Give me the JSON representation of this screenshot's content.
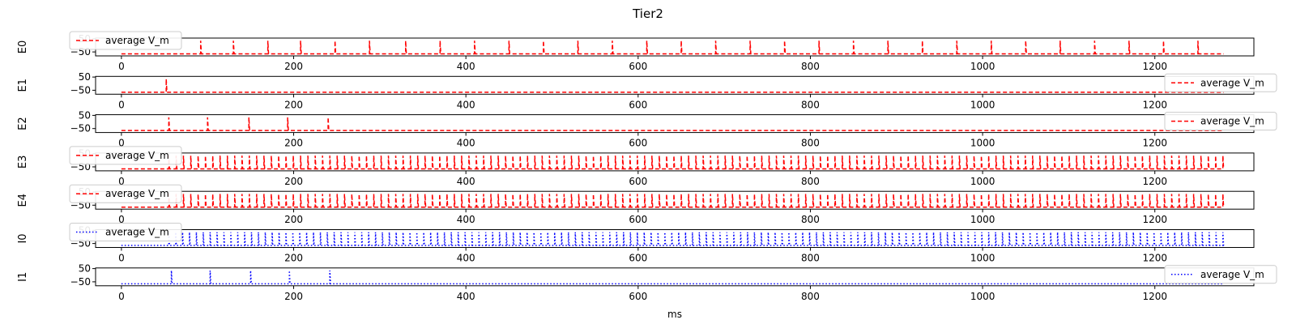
{
  "figure": {
    "title": "Tier2",
    "xlabel": "ms"
  },
  "legend_label": "average V_m",
  "chart_data": {
    "type": "line",
    "title": "Tier2",
    "xlabel": "ms",
    "xlim": [
      -30,
      1315
    ],
    "x_ticks": [
      0,
      200,
      400,
      600,
      800,
      1000,
      1200
    ],
    "x_tick_labels": [
      "0",
      "200",
      "400",
      "600",
      "800",
      "1000",
      "1200"
    ],
    "ylim": [
      -80,
      55
    ],
    "y_ticks": [
      50,
      -50
    ],
    "y_tick_labels": [
      "50",
      "−50"
    ],
    "panels": [
      {
        "ylabel": "E0",
        "color": "#ff0000",
        "linestyle": "dashed",
        "baseline": -65,
        "peak": 35,
        "legend": "upper-left",
        "spikes": [
          92,
          130,
          170,
          208,
          248,
          288,
          330,
          370,
          410,
          450,
          490,
          530,
          570,
          610,
          650,
          690,
          730,
          770,
          810,
          850,
          890,
          930,
          970,
          1010,
          1050,
          1090,
          1130,
          1170,
          1210,
          1250
        ]
      },
      {
        "ylabel": "E1",
        "color": "#ff0000",
        "linestyle": "dashed",
        "baseline": -65,
        "peak": 35,
        "legend": "lower-right",
        "spikes": [
          52
        ]
      },
      {
        "ylabel": "E2",
        "color": "#ff0000",
        "linestyle": "dashed",
        "baseline": -65,
        "peak": 35,
        "legend": "lower-right",
        "spikes": [
          55,
          100,
          148,
          193,
          240
        ]
      },
      {
        "ylabel": "E3",
        "color": "#ff0000",
        "linestyle": "dashed",
        "baseline": -65,
        "peak": 35,
        "legend": "upper-left",
        "spike_train": {
          "start": 55,
          "end": 1280,
          "interval": 8.5
        }
      },
      {
        "ylabel": "E4",
        "color": "#ff0000",
        "linestyle": "dashed",
        "baseline": -65,
        "peak": 35,
        "legend": "upper-left",
        "spike_train": {
          "start": 55,
          "end": 1280,
          "interval": 8.5
        }
      },
      {
        "ylabel": "I0",
        "color": "#0000ff",
        "linestyle": "dotted",
        "baseline": -65,
        "peak": 35,
        "legend": "upper-left",
        "spike_train": {
          "start": 55,
          "end": 1280,
          "interval": 8.0
        }
      },
      {
        "ylabel": "I1",
        "color": "#0000ff",
        "linestyle": "dotted",
        "baseline": -65,
        "peak": 35,
        "legend": "lower-right",
        "spikes": [
          58,
          103,
          150,
          195,
          242
        ]
      }
    ]
  }
}
